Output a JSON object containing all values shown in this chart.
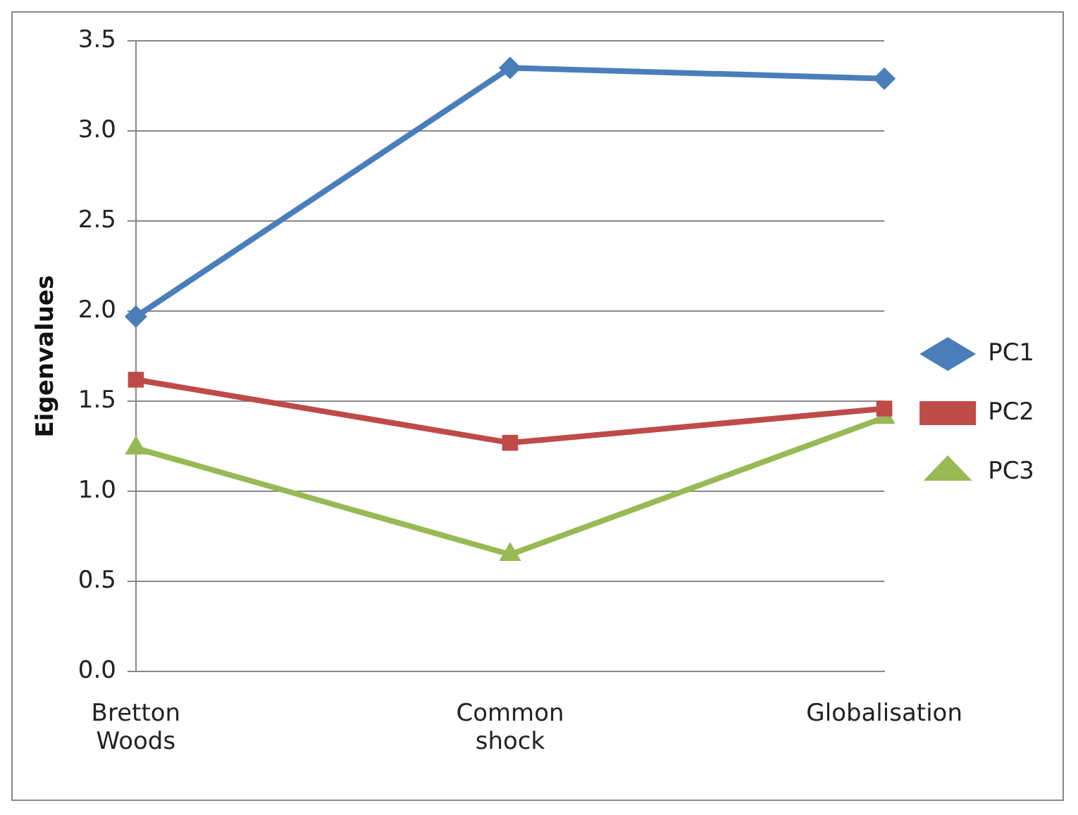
{
  "chart_data": {
    "type": "line",
    "ylabel": "Eigenvalues",
    "categories": [
      "Bretton Woods",
      "Common shock",
      "Globalisation"
    ],
    "series": [
      {
        "name": "PC1",
        "color": "#4a7ebb",
        "marker": "diamond",
        "values": [
          1.97,
          3.35,
          3.29
        ]
      },
      {
        "name": "PC2",
        "color": "#be4b48",
        "marker": "square",
        "values": [
          1.62,
          1.27,
          1.46
        ]
      },
      {
        "name": "PC3",
        "color": "#98b954",
        "marker": "triangle",
        "values": [
          1.24,
          0.65,
          1.41
        ]
      }
    ],
    "ylim": [
      0,
      3.5
    ],
    "yticks": [
      {
        "value": 0,
        "label": "0.0"
      },
      {
        "value": 0.5,
        "label": "0.5"
      },
      {
        "value": 1,
        "label": "1.0"
      },
      {
        "value": 1.5,
        "label": "1.5"
      },
      {
        "value": 2,
        "label": "2.0"
      },
      {
        "value": 2.5,
        "label": "2.5"
      },
      {
        "value": 3,
        "label": "3.0"
      },
      {
        "value": 3.5,
        "label": "3.5"
      }
    ],
    "grid": "y",
    "legend": "right",
    "line_style": "solid"
  }
}
